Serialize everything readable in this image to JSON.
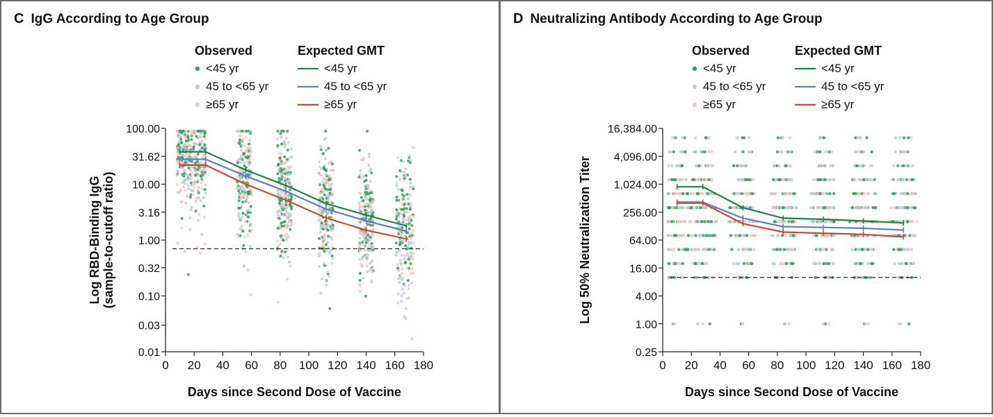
{
  "legend": {
    "observed_header": "Observed",
    "expected_header": "Expected GMT",
    "groups": [
      "<45 yr",
      "45 to <65 yr",
      "≥65 yr"
    ],
    "observed_colors": [
      "#3f9a62",
      "#b7cbe0",
      "#efc8bf"
    ],
    "line_colors": [
      "#1a8447",
      "#5b7fc4",
      "#cc4a2c"
    ]
  },
  "chart_data": [
    {
      "panel_letter": "C",
      "title": "IgG According to Age Group",
      "type": "line",
      "xlabel": "Days since Second Dose of Vaccine",
      "ylabel_line1": "Log RBD-Binding IgG",
      "ylabel_line2": "(sample-to-cutoff ratio)",
      "y_scale": "log",
      "xlim": [
        0,
        180
      ],
      "ylim": [
        0.01,
        100
      ],
      "x_ticks": [
        0,
        20,
        40,
        60,
        80,
        100,
        120,
        140,
        160,
        180
      ],
      "y_ticks": [
        0.01,
        0.03,
        0.1,
        0.32,
        1.0,
        3.16,
        10.0,
        31.62,
        100.0
      ],
      "y_tick_labels": [
        "0.01",
        "0.03",
        "0.10",
        "0.32",
        "1.00",
        "3.16",
        "10.00",
        "31.62",
        "100.00"
      ],
      "threshold": 0.7,
      "series": [
        {
          "name": "<45 yr",
          "x": [
            10,
            28,
            56,
            84,
            112,
            140,
            168
          ],
          "y": [
            38,
            38,
            18,
            9.5,
            4.5,
            2.8,
            1.8
          ]
        },
        {
          "name": "45 to <65 yr",
          "x": [
            10,
            28,
            56,
            84,
            112,
            140,
            168
          ],
          "y": [
            28,
            28,
            14,
            7.5,
            3.6,
            2.2,
            1.45
          ]
        },
        {
          "name": "≥65 yr",
          "x": [
            10,
            28,
            56,
            84,
            112,
            140,
            168
          ],
          "y": [
            22,
            22,
            10,
            5.2,
            2.5,
            1.5,
            1.05
          ]
        }
      ],
      "scatter_clusters": [
        {
          "x": 18,
          "x_spread": 10,
          "y_center": 30,
          "y_spread_log": 0.38,
          "count": 360
        },
        {
          "x": 55,
          "x_spread": 5,
          "y_center": 12,
          "y_spread_log": 0.5,
          "count": 220
        },
        {
          "x": 83,
          "x_spread": 5,
          "y_center": 6.5,
          "y_spread_log": 0.55,
          "count": 240
        },
        {
          "x": 112,
          "x_spread": 5,
          "y_center": 3.5,
          "y_spread_log": 0.55,
          "count": 230
        },
        {
          "x": 140,
          "x_spread": 5,
          "y_center": 2.2,
          "y_spread_log": 0.55,
          "count": 220
        },
        {
          "x": 167,
          "x_spread": 6,
          "y_center": 1.5,
          "y_spread_log": 0.55,
          "count": 220
        }
      ]
    },
    {
      "panel_letter": "D",
      "title": "Neutralizing Antibody According to Age Group",
      "type": "line",
      "xlabel": "Days since Second Dose of Vaccine",
      "ylabel_line1": "Log 50% Neutralization Titer",
      "y_scale": "log",
      "xlim": [
        0,
        180
      ],
      "ylim": [
        0.25,
        16384
      ],
      "x_ticks": [
        0,
        20,
        40,
        60,
        80,
        100,
        120,
        140,
        160,
        180
      ],
      "y_ticks": [
        0.25,
        1,
        4,
        16,
        64,
        256,
        1024,
        4096,
        16384
      ],
      "y_tick_labels": [
        "0.25",
        "1.00",
        "4.00",
        "16.00",
        "64.00",
        "256.00",
        "1,024.00",
        "4,096.00",
        "16,384.00"
      ],
      "threshold": 10,
      "series": [
        {
          "name": "<45 yr",
          "x": [
            10,
            28,
            56,
            84,
            112,
            140,
            168
          ],
          "y": [
            900,
            900,
            320,
            190,
            180,
            165,
            150
          ]
        },
        {
          "name": "45 to <65 yr",
          "x": [
            10,
            28,
            56,
            84,
            112,
            140,
            168
          ],
          "y": [
            420,
            420,
            190,
            125,
            120,
            115,
            105
          ]
        },
        {
          "name": "≥65 yr",
          "x": [
            10,
            28,
            56,
            84,
            112,
            140,
            168
          ],
          "y": [
            400,
            400,
            145,
            95,
            90,
            85,
            75
          ]
        }
      ],
      "scatter_days": [
        10,
        28,
        56,
        84,
        112,
        140,
        168
      ],
      "scatter_levels": [
        1,
        10,
        20,
        40,
        80,
        160,
        320,
        640,
        1280,
        2560,
        5120,
        10240
      ]
    }
  ]
}
